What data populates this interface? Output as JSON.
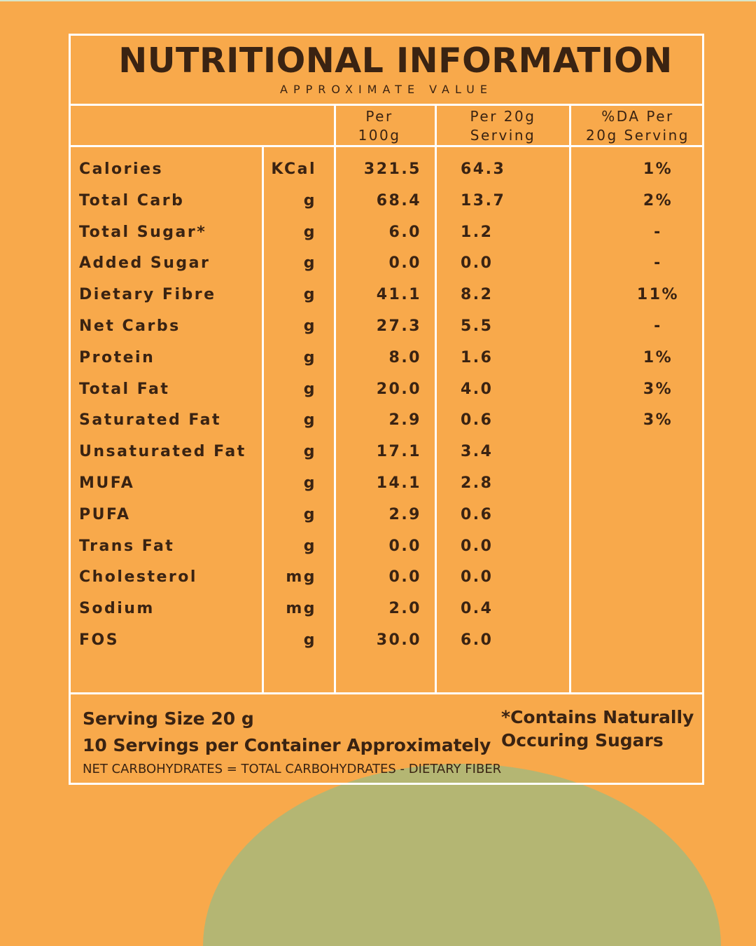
{
  "header": {
    "title": "NUTRITIONAL INFORMATION",
    "subtitle": "APPROXIMATE VALUE",
    "col_per100": "Per\n100g",
    "col_per20": "Per 20g\nServing",
    "col_da": "%DA Per\n20g Serving"
  },
  "rows": [
    {
      "name": "Calories",
      "unit": "KCal",
      "per100": "321.5",
      "per20": "64.3",
      "da": "1%"
    },
    {
      "name": "Total Carb",
      "unit": "g",
      "per100": "68.4",
      "per20": "13.7",
      "da": "2%"
    },
    {
      "name": "Total Sugar*",
      "unit": "g",
      "per100": "6.0",
      "per20": "1.2",
      "da": "-"
    },
    {
      "name": "Added Sugar",
      "unit": "g",
      "per100": "0.0",
      "per20": "0.0",
      "da": "-"
    },
    {
      "name": "Dietary Fibre",
      "unit": "g",
      "per100": "41.1",
      "per20": "8.2",
      "da": "11%"
    },
    {
      "name": "Net Carbs",
      "unit": "g",
      "per100": "27.3",
      "per20": "5.5",
      "da": "-"
    },
    {
      "name": "Protein",
      "unit": "g",
      "per100": "8.0",
      "per20": "1.6",
      "da": "1%"
    },
    {
      "name": "Total Fat",
      "unit": "g",
      "per100": "20.0",
      "per20": "4.0",
      "da": "3%"
    },
    {
      "name": "Saturated Fat",
      "unit": "g",
      "per100": "2.9",
      "per20": "0.6",
      "da": "3%"
    },
    {
      "name": "Unsaturated Fat",
      "unit": "g",
      "per100": "17.1",
      "per20": "3.4",
      "da": ""
    },
    {
      "name": "MUFA",
      "unit": "g",
      "per100": "14.1",
      "per20": "2.8",
      "da": ""
    },
    {
      "name": "PUFA",
      "unit": "g",
      "per100": "2.9",
      "per20": "0.6",
      "da": ""
    },
    {
      "name": "Trans Fat",
      "unit": "g",
      "per100": "0.0",
      "per20": "0.0",
      "da": ""
    },
    {
      "name": "Cholesterol",
      "unit": "mg",
      "per100": "0.0",
      "per20": "0.0",
      "da": ""
    },
    {
      "name": "Sodium",
      "unit": "mg",
      "per100": "2.0",
      "per20": "0.4",
      "da": ""
    },
    {
      "name": "FOS",
      "unit": "g",
      "per100": "30.0",
      "per20": "6.0",
      "da": ""
    }
  ],
  "footer": {
    "serving_size": "Serving Size 20 g",
    "servings_per_container": "10 Servings per Container Approximately",
    "sugar_note": "*Contains Naturally Occuring Sugars",
    "formula": "NET CARBOHYDRATES = TOTAL CARBOHYDRATES - DIETARY FIBER"
  },
  "colors": {
    "background": "#F8A94B",
    "text": "#3a2312",
    "lines": "#ffffff",
    "accent_arc": "#b4b673"
  }
}
